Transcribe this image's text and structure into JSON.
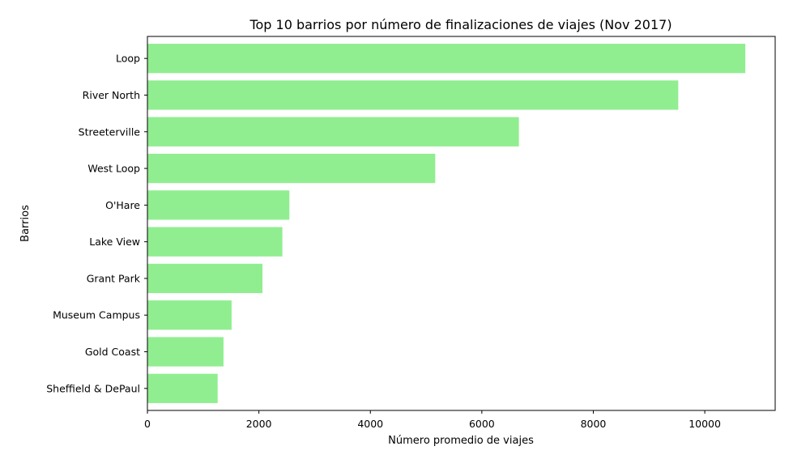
{
  "chart_data": {
    "type": "bar",
    "orientation": "horizontal",
    "title": "Top 10 barrios por número de finalizaciones de viajes (Nov 2017)",
    "xlabel": "Número promedio de viajes",
    "ylabel": "Barrios",
    "categories": [
      "Loop",
      "River North",
      "Streeterville",
      "West Loop",
      "O'Hare",
      "Lake View",
      "Grant Park",
      "Museum Campus",
      "Gold Coast",
      "Sheffield & DePaul"
    ],
    "values": [
      10727,
      9524,
      6665,
      5164,
      2547,
      2421,
      2064,
      1510,
      1365,
      1260
    ],
    "xlim": [
      0,
      11263
    ],
    "xticks": [
      0,
      2000,
      4000,
      6000,
      8000,
      10000
    ],
    "grid": false,
    "bar_color": "#90ee90"
  }
}
